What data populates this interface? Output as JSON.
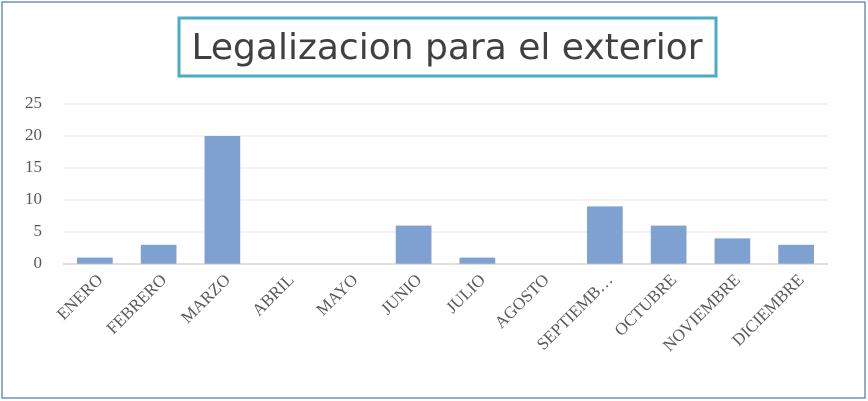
{
  "chart_data": {
    "type": "bar",
    "title": "Legalizacion para el exterior",
    "categories": [
      "ENERO",
      "FEBRERO",
      "MARZO",
      "ABRIL",
      "MAYO",
      "JUNIO",
      "JULIO",
      "AGOSTO",
      "SEPTIEMB…",
      "OCTUBRE",
      "NOVIEMBRE",
      "DICIEMBRE"
    ],
    "values": [
      1,
      3,
      20,
      0,
      0,
      6,
      1,
      0,
      9,
      6,
      4,
      3
    ],
    "color": "#7fa1d1",
    "ylim": [
      0,
      25
    ],
    "yticks": [
      0,
      5,
      10,
      15,
      20,
      25
    ],
    "grid": true
  }
}
